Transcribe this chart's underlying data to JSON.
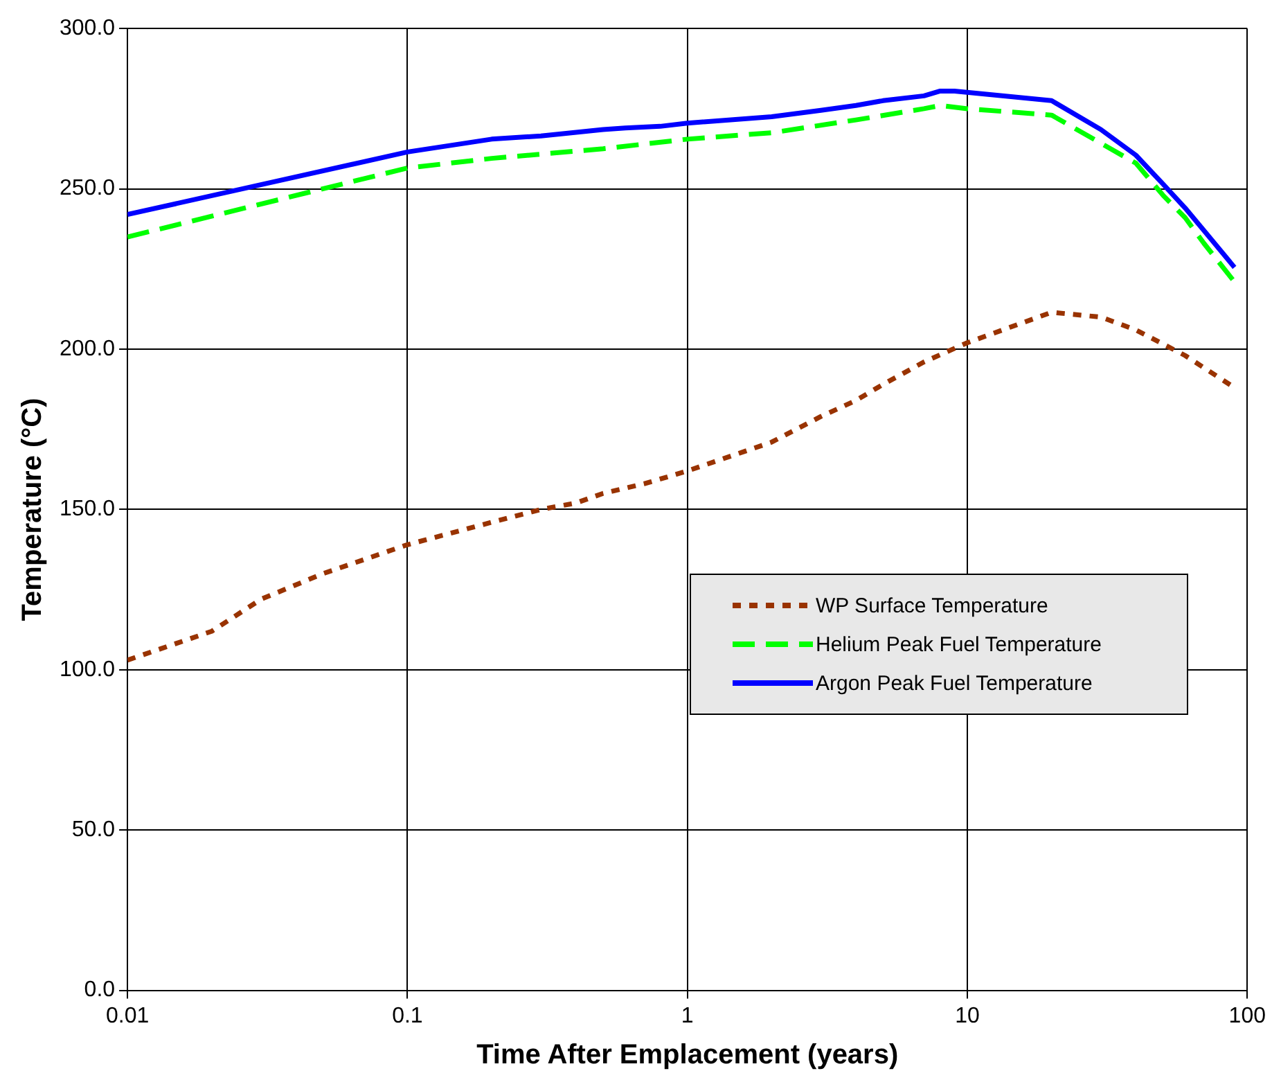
{
  "chart_data": {
    "type": "line",
    "xlabel": "Time After Emplacement (years)",
    "ylabel": "Temperature (°C)",
    "log": "x",
    "grid": true,
    "legend": "right",
    "marker": "none",
    "xlim": [
      0.01,
      100
    ],
    "xticks": [
      0.01,
      0.1,
      1,
      10,
      100
    ],
    "ylim": [
      0,
      300
    ],
    "yticks": [
      {
        "value": 0,
        "label": "0.0"
      },
      {
        "value": 50,
        "label": "50.0"
      },
      {
        "value": 100,
        "label": "100.0"
      },
      {
        "value": 150,
        "label": "150.0"
      },
      {
        "value": 200,
        "label": "200.0"
      },
      {
        "value": 250,
        "label": "250.0"
      },
      {
        "value": 300,
        "label": "300.0"
      }
    ],
    "series": [
      {
        "name": "WP Surface Temperature",
        "color": "#993300",
        "line_style": "dotted",
        "x": [
          0.01,
          0.02,
          0.03,
          0.05,
          0.1,
          0.2,
          0.3,
          0.4,
          0.5,
          0.7,
          1,
          2,
          3,
          4,
          5,
          7,
          10,
          20,
          30,
          40,
          60,
          90
        ],
        "values": [
          103,
          112,
          122,
          130,
          139,
          146,
          150,
          152,
          155,
          158,
          162,
          171,
          179,
          184,
          189,
          196,
          202,
          211.5,
          210,
          206,
          198,
          188
        ]
      },
      {
        "name": "Helium Peak Fuel Temperature",
        "color": "#00ff00",
        "line_style": "dashed",
        "x": [
          0.01,
          0.1,
          0.2,
          0.5,
          1,
          2,
          4,
          7,
          8,
          10,
          20,
          40,
          50,
          60,
          70,
          90
        ],
        "values": [
          235,
          256.5,
          259.5,
          262.5,
          265.5,
          267.5,
          271.5,
          275,
          276,
          275,
          273,
          258,
          248,
          241,
          233,
          221
        ]
      },
      {
        "name": "Argon Peak Fuel Temperature",
        "color": "#0000ff",
        "line_style": "solid",
        "x": [
          0.01,
          0.1,
          0.2,
          0.3,
          0.5,
          0.6,
          0.8,
          1,
          2,
          3,
          4,
          5,
          7,
          8,
          9,
          20,
          30,
          40,
          50,
          60,
          70,
          90
        ],
        "values": [
          242,
          261.5,
          265.5,
          266.5,
          268.5,
          269,
          269.5,
          270.5,
          272.5,
          274.5,
          276,
          277.5,
          279,
          280.5,
          280.5,
          277.5,
          268.5,
          260.5,
          251.5,
          244,
          237,
          225.5
        ]
      }
    ]
  }
}
